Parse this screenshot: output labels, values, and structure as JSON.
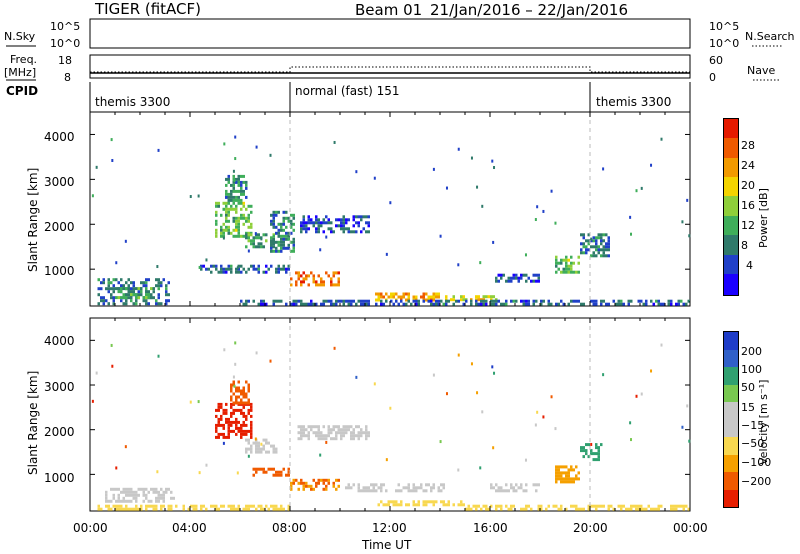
{
  "header": {
    "title": "TIGER (fitACF)",
    "beam": "Beam 01",
    "date_range": "21/Jan/2016 – 22/Jan/2016"
  },
  "top_panels": {
    "nsky_label": "N.Sky",
    "nsky_ticks": [
      "10^5",
      "10^0"
    ],
    "nsearch_label": "N.Search",
    "freq_label": "Freq.",
    "freq_unit": "[MHz]",
    "freq_ticks": [
      "18",
      "8"
    ],
    "nave_ticks": [
      "60",
      "0"
    ],
    "nave_label": "Nave",
    "cpid_label": "CPID",
    "cpid_segments": [
      {
        "label": "themis 3300",
        "start_hour": 0,
        "end_hour": 8
      },
      {
        "label": "normal (fast) 151",
        "start_hour": 8,
        "end_hour": 20
      },
      {
        "label": "themis 3300",
        "start_hour": 20,
        "end_hour": 24
      }
    ]
  },
  "chart_data": [
    {
      "type": "heatmap",
      "name": "power",
      "ylabel": "Slant Range [km]",
      "ylim": [
        180,
        4500
      ],
      "yticks": [
        "1000",
        "2000",
        "3000",
        "4000"
      ],
      "xlim": [
        0,
        24
      ],
      "colorbar_label": "Power [dB]",
      "colorbar_ticks": [
        "4",
        "8",
        "12",
        "16",
        "20",
        "24",
        "28"
      ],
      "colorscale": [
        "#1a00ff",
        "#2040c8",
        "#2f7a6a",
        "#3fae5a",
        "#8fcf3a",
        "#f4d400",
        "#f29a00",
        "#ef5a00",
        "#e51a00"
      ],
      "regions": [
        {
          "t0": 0.3,
          "t1": 3.2,
          "r0": 250,
          "r1": 800,
          "v": 8
        },
        {
          "t0": 1.0,
          "t1": 2.6,
          "r0": 350,
          "r1": 600,
          "v": 12
        },
        {
          "t0": 5.0,
          "t1": 6.5,
          "r0": 1700,
          "r1": 2500,
          "v": 14
        },
        {
          "t0": 5.4,
          "t1": 6.3,
          "r0": 2500,
          "r1": 3100,
          "v": 10
        },
        {
          "t0": 6.2,
          "t1": 7.4,
          "r0": 1500,
          "r1": 1800,
          "v": 11
        },
        {
          "t0": 4.4,
          "t1": 8.0,
          "r0": 950,
          "r1": 1100,
          "v": 7
        },
        {
          "t0": 8.0,
          "t1": 10.0,
          "r0": 650,
          "r1": 950,
          "v": 26
        },
        {
          "t0": 7.2,
          "t1": 8.2,
          "r0": 1400,
          "r1": 2300,
          "v": 9
        },
        {
          "t0": 8.3,
          "t1": 11.2,
          "r0": 1800,
          "r1": 2200,
          "v": 6
        },
        {
          "t0": 11.4,
          "t1": 14.0,
          "r0": 330,
          "r1": 480,
          "v": 22
        },
        {
          "t0": 14.2,
          "t1": 16.4,
          "r0": 330,
          "r1": 420,
          "v": 18
        },
        {
          "t0": 16.2,
          "t1": 18.0,
          "r0": 750,
          "r1": 900,
          "v": 6
        },
        {
          "t0": 18.6,
          "t1": 19.6,
          "r0": 900,
          "r1": 1300,
          "v": 14
        },
        {
          "t0": 19.6,
          "t1": 20.8,
          "r0": 1300,
          "r1": 1800,
          "v": 9
        },
        {
          "t0": 6.0,
          "t1": 24.0,
          "r0": 200,
          "r1": 320,
          "v": 7
        }
      ]
    },
    {
      "type": "heatmap",
      "name": "velocity",
      "ylabel": "Slant Range [km]",
      "ylim": [
        180,
        4500
      ],
      "yticks": [
        "1000",
        "2000",
        "3000",
        "4000"
      ],
      "xlim": [
        0,
        24
      ],
      "xlabel": "Time UT",
      "xticks": [
        "00:00",
        "04:00",
        "08:00",
        "12:00",
        "16:00",
        "20:00",
        "00:00"
      ],
      "colorbar_label": "Velocity [m s⁻¹]",
      "colorbar_ticks": [
        "−200",
        "−100",
        "−50",
        "−15",
        "15",
        "50",
        "100",
        "200"
      ],
      "colorscale": [
        "#e61e00",
        "#f05a00",
        "#f5a000",
        "#f8d850",
        "#c8c8c8",
        "#c8c8c8",
        "#78c850",
        "#30a070",
        "#3060c8",
        "#1e3cc8"
      ],
      "regions": [
        {
          "t0": 0.6,
          "t1": 3.4,
          "r0": 380,
          "r1": 700,
          "v": 0
        },
        {
          "t0": 0.3,
          "t1": 8.0,
          "r0": 200,
          "r1": 320,
          "v": -40
        },
        {
          "t0": 5.0,
          "t1": 6.5,
          "r0": 1800,
          "r1": 2600,
          "v": -220
        },
        {
          "t0": 5.6,
          "t1": 6.3,
          "r0": 2600,
          "r1": 3100,
          "v": -180
        },
        {
          "t0": 6.2,
          "t1": 7.5,
          "r0": 1500,
          "r1": 1800,
          "v": 0
        },
        {
          "t0": 6.5,
          "t1": 8.0,
          "r0": 950,
          "r1": 1150,
          "v": -120
        },
        {
          "t0": 8.0,
          "t1": 10.0,
          "r0": 650,
          "r1": 900,
          "v": -100
        },
        {
          "t0": 8.3,
          "t1": 11.2,
          "r0": 1800,
          "r1": 2100,
          "v": 0
        },
        {
          "t0": 10.2,
          "t1": 14.2,
          "r0": 650,
          "r1": 800,
          "v": 0
        },
        {
          "t0": 11.4,
          "t1": 15.0,
          "r0": 300,
          "r1": 420,
          "v": -30
        },
        {
          "t0": 16.0,
          "t1": 18.0,
          "r0": 650,
          "r1": 800,
          "v": 0
        },
        {
          "t0": 18.6,
          "t1": 19.6,
          "r0": 850,
          "r1": 1200,
          "v": -60
        },
        {
          "t0": 19.6,
          "t1": 20.5,
          "r0": 1300,
          "r1": 1700,
          "v": 60
        },
        {
          "t0": 15.0,
          "t1": 24.0,
          "r0": 200,
          "r1": 320,
          "v": -30
        }
      ]
    }
  ]
}
